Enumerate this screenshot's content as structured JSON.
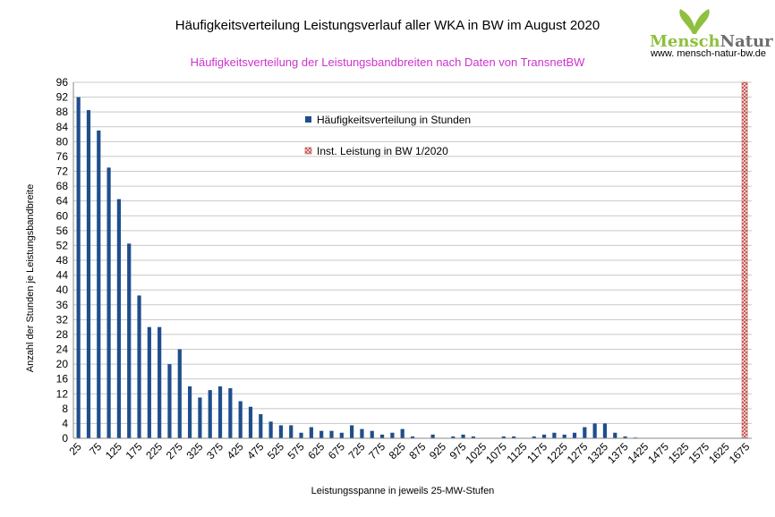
{
  "header": {
    "logo_text_1": "Mensch",
    "logo_text_2": "Natur",
    "logo_url": "www. mensch-natur-bw.de"
  },
  "colors": {
    "bar": "#1f4e8c",
    "inst_line": "#c0504d",
    "subtitle": "#cc33cc",
    "grid": "#c8c8c8",
    "logo_green": "#8fbf3f",
    "logo_gray": "#6d6d6d"
  },
  "chart_data": {
    "type": "bar",
    "title": "Häufigkeitsverteilung Leistungsverlauf aller WKA in BW im August 2020",
    "subtitle": "Häufigkeitsverteilung der Leistungsbandbreiten nach Daten von TransnetBW",
    "xlabel": "Leistungsspanne in jeweils 25-MW-Stufen",
    "ylabel": "Anzahl der Stunden je Leistungsbandbreite",
    "ylim": [
      0,
      96
    ],
    "ytick_step": 4,
    "grid": true,
    "x_step": 25,
    "x_start": 25,
    "x_end": 1675,
    "x_tick_labels": [
      "25",
      "75",
      "125",
      "175",
      "225",
      "275",
      "325",
      "375",
      "425",
      "475",
      "525",
      "575",
      "625",
      "675",
      "725",
      "775",
      "825",
      "875",
      "925",
      "975",
      "1025",
      "1075",
      "1125",
      "1175",
      "1225",
      "1275",
      "1325",
      "1375",
      "1425",
      "1475",
      "1525",
      "1575",
      "1625",
      "1675"
    ],
    "series": [
      {
        "name": "Häufigkeitsverteilung in Stunden",
        "values": [
          92,
          88.5,
          83,
          73,
          64.5,
          52.5,
          38.5,
          30,
          30,
          20,
          24,
          14,
          11,
          13,
          14,
          13.5,
          10,
          8.5,
          6.5,
          4.5,
          3.5,
          3.5,
          1.5,
          3,
          2,
          2,
          1.5,
          3.5,
          2.5,
          2,
          1,
          1.5,
          2.5,
          0.5,
          0,
          1,
          0,
          0.5,
          1,
          0.5,
          0,
          0,
          0.5,
          0.5,
          0,
          0.5,
          1,
          1.5,
          1,
          1.5,
          3,
          4,
          4,
          1.5,
          0.5,
          0.2
        ]
      }
    ],
    "inst_line": {
      "name": "Inst. Leistung in BW 1/2020",
      "x": 1670
    },
    "legend_position": "top-center"
  }
}
